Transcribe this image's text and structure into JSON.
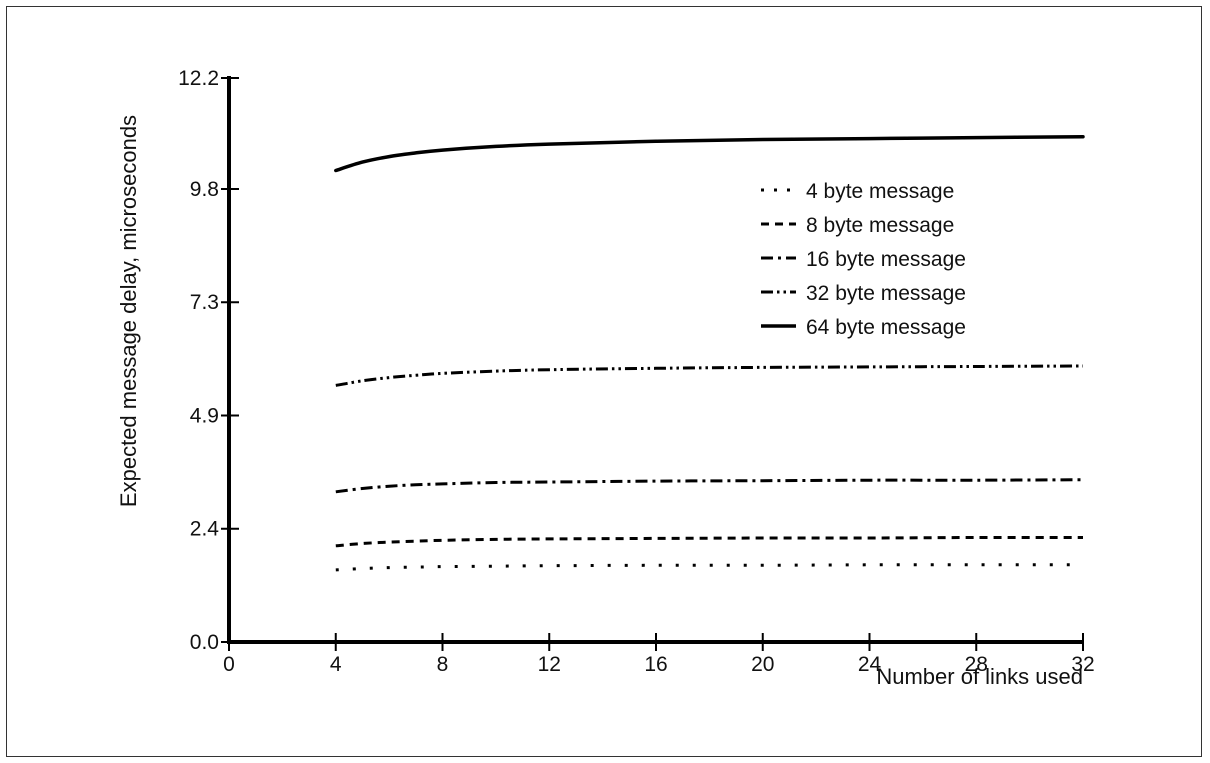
{
  "chart_data": {
    "type": "line",
    "title": "",
    "xlabel": "Number of links used",
    "ylabel": "Expected message delay, microseconds",
    "xlim": [
      0,
      32
    ],
    "ylim": [
      0.0,
      12.2
    ],
    "x_ticks": [
      0,
      4,
      8,
      12,
      16,
      20,
      24,
      28,
      32
    ],
    "x_tick_labels": [
      "0",
      "4",
      "8",
      "12",
      "16",
      "20",
      "24",
      "28",
      "32"
    ],
    "y_ticks": [
      0.0,
      2.45,
      4.9,
      7.35,
      9.8,
      12.2
    ],
    "y_tick_labels": [
      "0.0",
      "2.4",
      "4.9",
      "7.3",
      "9.8",
      "12.2"
    ],
    "grid": false,
    "legend_position": "upper-right",
    "x": [
      4,
      5,
      6,
      7,
      8,
      10,
      12,
      16,
      20,
      24,
      28,
      32
    ],
    "series": [
      {
        "name": "4 byte message",
        "dash": "dotted",
        "values": [
          1.56,
          1.59,
          1.61,
          1.62,
          1.63,
          1.64,
          1.65,
          1.66,
          1.66,
          1.67,
          1.67,
          1.67
        ]
      },
      {
        "name": "8 byte message",
        "dash": "dashed",
        "values": [
          2.08,
          2.13,
          2.16,
          2.18,
          2.2,
          2.22,
          2.23,
          2.24,
          2.25,
          2.25,
          2.26,
          2.26
        ]
      },
      {
        "name": "16 byte message",
        "dash": "dash-dot",
        "values": [
          3.25,
          3.32,
          3.37,
          3.4,
          3.42,
          3.45,
          3.46,
          3.48,
          3.49,
          3.5,
          3.5,
          3.51
        ]
      },
      {
        "name": "32 byte message",
        "dash": "dash-dot-dot",
        "values": [
          5.55,
          5.65,
          5.72,
          5.77,
          5.81,
          5.86,
          5.89,
          5.92,
          5.94,
          5.95,
          5.96,
          5.97
        ]
      },
      {
        "name": "64 byte message",
        "dash": "solid",
        "values": [
          10.2,
          10.38,
          10.5,
          10.58,
          10.64,
          10.72,
          10.77,
          10.83,
          10.87,
          10.89,
          10.91,
          10.93
        ]
      }
    ]
  }
}
